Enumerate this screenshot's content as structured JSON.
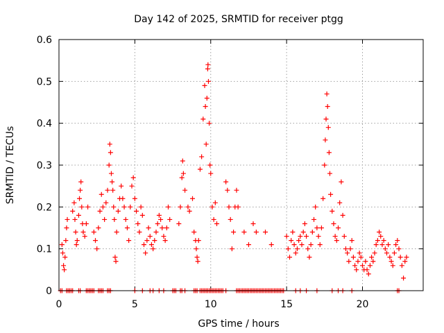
{
  "chart_data": {
    "type": "scatter",
    "title": "Day 142 of 2025, SRMTID for receiver ptgg",
    "xlabel": "GPS time / hours",
    "ylabel": "SRMTID / TECUs",
    "xlim": [
      0,
      24
    ],
    "ylim": [
      0,
      0.6
    ],
    "xticks": [
      0,
      5,
      10,
      15,
      20
    ],
    "xtick_labels": [
      "0",
      "5",
      "10",
      "15",
      "20"
    ],
    "yticks": [
      0,
      0.1,
      0.2,
      0.3,
      0.4,
      0.5,
      0.6
    ],
    "ytick_labels": [
      "0",
      "0.1",
      "0.2",
      "0.3",
      "0.4",
      "0.5",
      "0.6"
    ],
    "grid": true,
    "marker": "+",
    "series": [
      {
        "name": "SRMTID",
        "color": "#ff0000",
        "points": [
          [
            0.2,
            0.11
          ],
          [
            0.25,
            0.09
          ],
          [
            0.3,
            0.06
          ],
          [
            0.35,
            0.05
          ],
          [
            0.4,
            0.08
          ],
          [
            0.45,
            0.12
          ],
          [
            0.5,
            0.15
          ],
          [
            0.55,
            0.17
          ],
          [
            0.9,
            0.19
          ],
          [
            1.0,
            0.21
          ],
          [
            1.05,
            0.17
          ],
          [
            1.1,
            0.14
          ],
          [
            1.15,
            0.11
          ],
          [
            1.2,
            0.12
          ],
          [
            1.3,
            0.18
          ],
          [
            1.35,
            0.22
          ],
          [
            1.4,
            0.24
          ],
          [
            1.45,
            0.26
          ],
          [
            1.5,
            0.2
          ],
          [
            1.55,
            0.16
          ],
          [
            1.6,
            0.14
          ],
          [
            1.7,
            0.13
          ],
          [
            1.8,
            0.16
          ],
          [
            1.9,
            0.2
          ],
          [
            2.3,
            0.14
          ],
          [
            2.4,
            0.12
          ],
          [
            2.5,
            0.1
          ],
          [
            2.6,
            0.15
          ],
          [
            2.7,
            0.19
          ],
          [
            2.8,
            0.23
          ],
          [
            2.9,
            0.2
          ],
          [
            3.0,
            0.17
          ],
          [
            3.1,
            0.21
          ],
          [
            3.2,
            0.24
          ],
          [
            3.3,
            0.3
          ],
          [
            3.35,
            0.35
          ],
          [
            3.4,
            0.33
          ],
          [
            3.45,
            0.28
          ],
          [
            3.5,
            0.26
          ],
          [
            3.55,
            0.24
          ],
          [
            3.6,
            0.2
          ],
          [
            3.65,
            0.17
          ],
          [
            3.7,
            0.08
          ],
          [
            3.75,
            0.07
          ],
          [
            3.8,
            0.14
          ],
          [
            3.9,
            0.19
          ],
          [
            4.0,
            0.22
          ],
          [
            4.1,
            0.25
          ],
          [
            4.2,
            0.22
          ],
          [
            4.3,
            0.2
          ],
          [
            4.4,
            0.17
          ],
          [
            4.5,
            0.15
          ],
          [
            4.6,
            0.12
          ],
          [
            4.7,
            0.2
          ],
          [
            4.8,
            0.25
          ],
          [
            4.9,
            0.27
          ],
          [
            5.0,
            0.22
          ],
          [
            5.1,
            0.19
          ],
          [
            5.2,
            0.16
          ],
          [
            5.3,
            0.14
          ],
          [
            5.4,
            0.2
          ],
          [
            5.5,
            0.18
          ],
          [
            5.6,
            0.11
          ],
          [
            5.7,
            0.09
          ],
          [
            5.8,
            0.12
          ],
          [
            5.9,
            0.15
          ],
          [
            6.0,
            0.13
          ],
          [
            6.1,
            0.11
          ],
          [
            6.2,
            0.1
          ],
          [
            6.3,
            0.12
          ],
          [
            6.4,
            0.14
          ],
          [
            6.5,
            0.16
          ],
          [
            6.6,
            0.18
          ],
          [
            6.7,
            0.17
          ],
          [
            6.8,
            0.15
          ],
          [
            6.9,
            0.13
          ],
          [
            7.0,
            0.12
          ],
          [
            7.1,
            0.15
          ],
          [
            7.2,
            0.2
          ],
          [
            7.3,
            0.17
          ],
          [
            7.9,
            0.16
          ],
          [
            8.0,
            0.2
          ],
          [
            8.1,
            0.27
          ],
          [
            8.15,
            0.31
          ],
          [
            8.2,
            0.28
          ],
          [
            8.3,
            0.24
          ],
          [
            8.5,
            0.2
          ],
          [
            8.6,
            0.19
          ],
          [
            8.8,
            0.22
          ],
          [
            8.9,
            0.14
          ],
          [
            9.0,
            0.12
          ],
          [
            9.05,
            0.1
          ],
          [
            9.1,
            0.08
          ],
          [
            9.15,
            0.07
          ],
          [
            9.2,
            0.12
          ],
          [
            9.3,
            0.29
          ],
          [
            9.4,
            0.32
          ],
          [
            9.5,
            0.41
          ],
          [
            9.6,
            0.49
          ],
          [
            9.65,
            0.44
          ],
          [
            9.7,
            0.35
          ],
          [
            9.75,
            0.46
          ],
          [
            9.8,
            0.53
          ],
          [
            9.82,
            0.54
          ],
          [
            9.85,
            0.5
          ],
          [
            9.9,
            0.4
          ],
          [
            9.95,
            0.3
          ],
          [
            10.0,
            0.28
          ],
          [
            10.1,
            0.2
          ],
          [
            10.2,
            0.17
          ],
          [
            10.3,
            0.21
          ],
          [
            10.4,
            0.16
          ],
          [
            11.0,
            0.26
          ],
          [
            11.1,
            0.24
          ],
          [
            11.2,
            0.2
          ],
          [
            11.3,
            0.17
          ],
          [
            11.4,
            0.1
          ],
          [
            11.5,
            0.14
          ],
          [
            11.6,
            0.2
          ],
          [
            11.7,
            0.24
          ],
          [
            11.8,
            0.2
          ],
          [
            12.2,
            0.14
          ],
          [
            12.5,
            0.11
          ],
          [
            12.8,
            0.16
          ],
          [
            13.0,
            0.14
          ],
          [
            13.6,
            0.14
          ],
          [
            14.0,
            0.11
          ],
          [
            15.0,
            0.13
          ],
          [
            15.1,
            0.1
          ],
          [
            15.2,
            0.08
          ],
          [
            15.3,
            0.12
          ],
          [
            15.4,
            0.14
          ],
          [
            15.5,
            0.11
          ],
          [
            15.6,
            0.09
          ],
          [
            15.7,
            0.1
          ],
          [
            15.8,
            0.12
          ],
          [
            15.9,
            0.13
          ],
          [
            16.0,
            0.11
          ],
          [
            16.1,
            0.14
          ],
          [
            16.2,
            0.16
          ],
          [
            16.3,
            0.13
          ],
          [
            16.4,
            0.1
          ],
          [
            16.5,
            0.08
          ],
          [
            16.6,
            0.11
          ],
          [
            16.7,
            0.14
          ],
          [
            16.8,
            0.17
          ],
          [
            16.9,
            0.2
          ],
          [
            17.0,
            0.15
          ],
          [
            17.1,
            0.13
          ],
          [
            17.2,
            0.11
          ],
          [
            17.3,
            0.15
          ],
          [
            17.4,
            0.22
          ],
          [
            17.5,
            0.3
          ],
          [
            17.55,
            0.36
          ],
          [
            17.6,
            0.41
          ],
          [
            17.65,
            0.47
          ],
          [
            17.7,
            0.44
          ],
          [
            17.75,
            0.39
          ],
          [
            17.8,
            0.33
          ],
          [
            17.85,
            0.28
          ],
          [
            17.9,
            0.23
          ],
          [
            18.0,
            0.19
          ],
          [
            18.1,
            0.16
          ],
          [
            18.2,
            0.13
          ],
          [
            18.3,
            0.12
          ],
          [
            18.4,
            0.15
          ],
          [
            18.5,
            0.21
          ],
          [
            18.6,
            0.26
          ],
          [
            18.7,
            0.18
          ],
          [
            18.8,
            0.13
          ],
          [
            18.9,
            0.1
          ],
          [
            19.0,
            0.09
          ],
          [
            19.1,
            0.07
          ],
          [
            19.2,
            0.1
          ],
          [
            19.3,
            0.12
          ],
          [
            19.4,
            0.08
          ],
          [
            19.5,
            0.06
          ],
          [
            19.6,
            0.05
          ],
          [
            19.7,
            0.07
          ],
          [
            19.8,
            0.09
          ],
          [
            19.9,
            0.08
          ],
          [
            20.0,
            0.06
          ],
          [
            20.1,
            0.05
          ],
          [
            20.2,
            0.07
          ],
          [
            20.3,
            0.05
          ],
          [
            20.4,
            0.04
          ],
          [
            20.5,
            0.06
          ],
          [
            20.6,
            0.08
          ],
          [
            20.7,
            0.07
          ],
          [
            20.8,
            0.09
          ],
          [
            20.9,
            0.11
          ],
          [
            21.0,
            0.12
          ],
          [
            21.1,
            0.14
          ],
          [
            21.2,
            0.13
          ],
          [
            21.3,
            0.11
          ],
          [
            21.4,
            0.12
          ],
          [
            21.5,
            0.1
          ],
          [
            21.6,
            0.09
          ],
          [
            21.7,
            0.11
          ],
          [
            21.8,
            0.08
          ],
          [
            21.9,
            0.07
          ],
          [
            22.0,
            0.06
          ],
          [
            22.1,
            0.09
          ],
          [
            22.2,
            0.11
          ],
          [
            22.3,
            0.12
          ],
          [
            22.4,
            0.1
          ],
          [
            22.5,
            0.08
          ],
          [
            22.6,
            0.06
          ],
          [
            22.7,
            0.03
          ],
          [
            22.8,
            0.07
          ],
          [
            22.9,
            0.08
          ]
        ]
      }
    ],
    "zero_points": [
      0.1,
      0.2,
      0.5,
      0.6,
      0.7,
      0.8,
      0.9,
      1.3,
      1.4,
      1.8,
      1.9,
      2.0,
      2.1,
      2.2,
      2.3,
      2.6,
      2.7,
      2.8,
      2.9,
      3.2,
      3.3,
      3.4,
      5.0,
      5.5,
      6.0,
      6.2,
      6.6,
      6.9,
      7.5,
      7.6,
      7.7,
      8.0,
      8.1,
      8.3,
      8.9,
      9.0,
      9.1,
      9.3,
      9.4,
      9.5,
      9.6,
      9.7,
      9.8,
      9.9,
      10.0,
      10.1,
      10.2,
      10.3,
      10.4,
      10.5,
      10.6,
      10.7,
      10.8,
      11.0,
      11.7,
      11.8,
      11.9,
      12.0,
      12.1,
      12.2,
      12.3,
      12.4,
      12.5,
      12.6,
      12.7,
      12.8,
      12.9,
      13.0,
      13.1,
      13.2,
      13.3,
      13.4,
      13.5,
      13.6,
      13.7,
      13.8,
      13.9,
      14.0,
      14.1,
      14.2,
      14.3,
      14.4,
      14.5,
      14.6,
      14.7,
      14.8,
      15.6,
      15.9,
      16.3,
      17.0,
      18.0,
      18.4,
      18.7,
      19.3,
      22.3,
      22.4
    ]
  }
}
